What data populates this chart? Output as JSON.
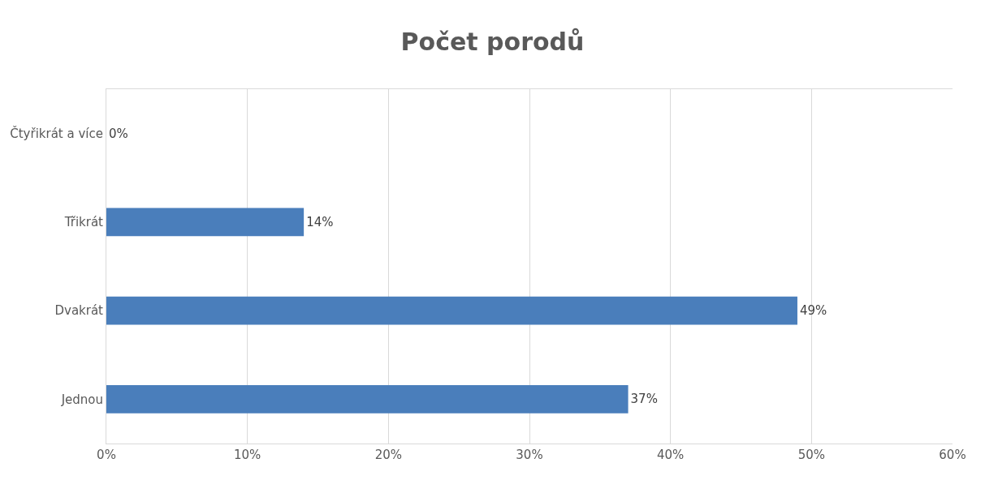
{
  "chart_data": {
    "type": "bar",
    "orientation": "horizontal",
    "title": "Počet porodů",
    "categories": [
      "Čtyřikrát a více",
      "Třikrát",
      "Dvakrát",
      "Jednou"
    ],
    "values": [
      0,
      14,
      49,
      37
    ],
    "value_labels": [
      "0%",
      "14%",
      "49%",
      "37%"
    ],
    "color": "#4a7ebb",
    "xlim": [
      0,
      60
    ],
    "xticks": [
      {
        "value": 0,
        "label": "0%"
      },
      {
        "value": 10,
        "label": "10%"
      },
      {
        "value": 20,
        "label": "20%"
      },
      {
        "value": 30,
        "label": "30%"
      },
      {
        "value": 40,
        "label": "40%"
      },
      {
        "value": 50,
        "label": "50%"
      },
      {
        "value": 60,
        "label": "60%"
      }
    ],
    "grid": "x",
    "legend": false
  }
}
